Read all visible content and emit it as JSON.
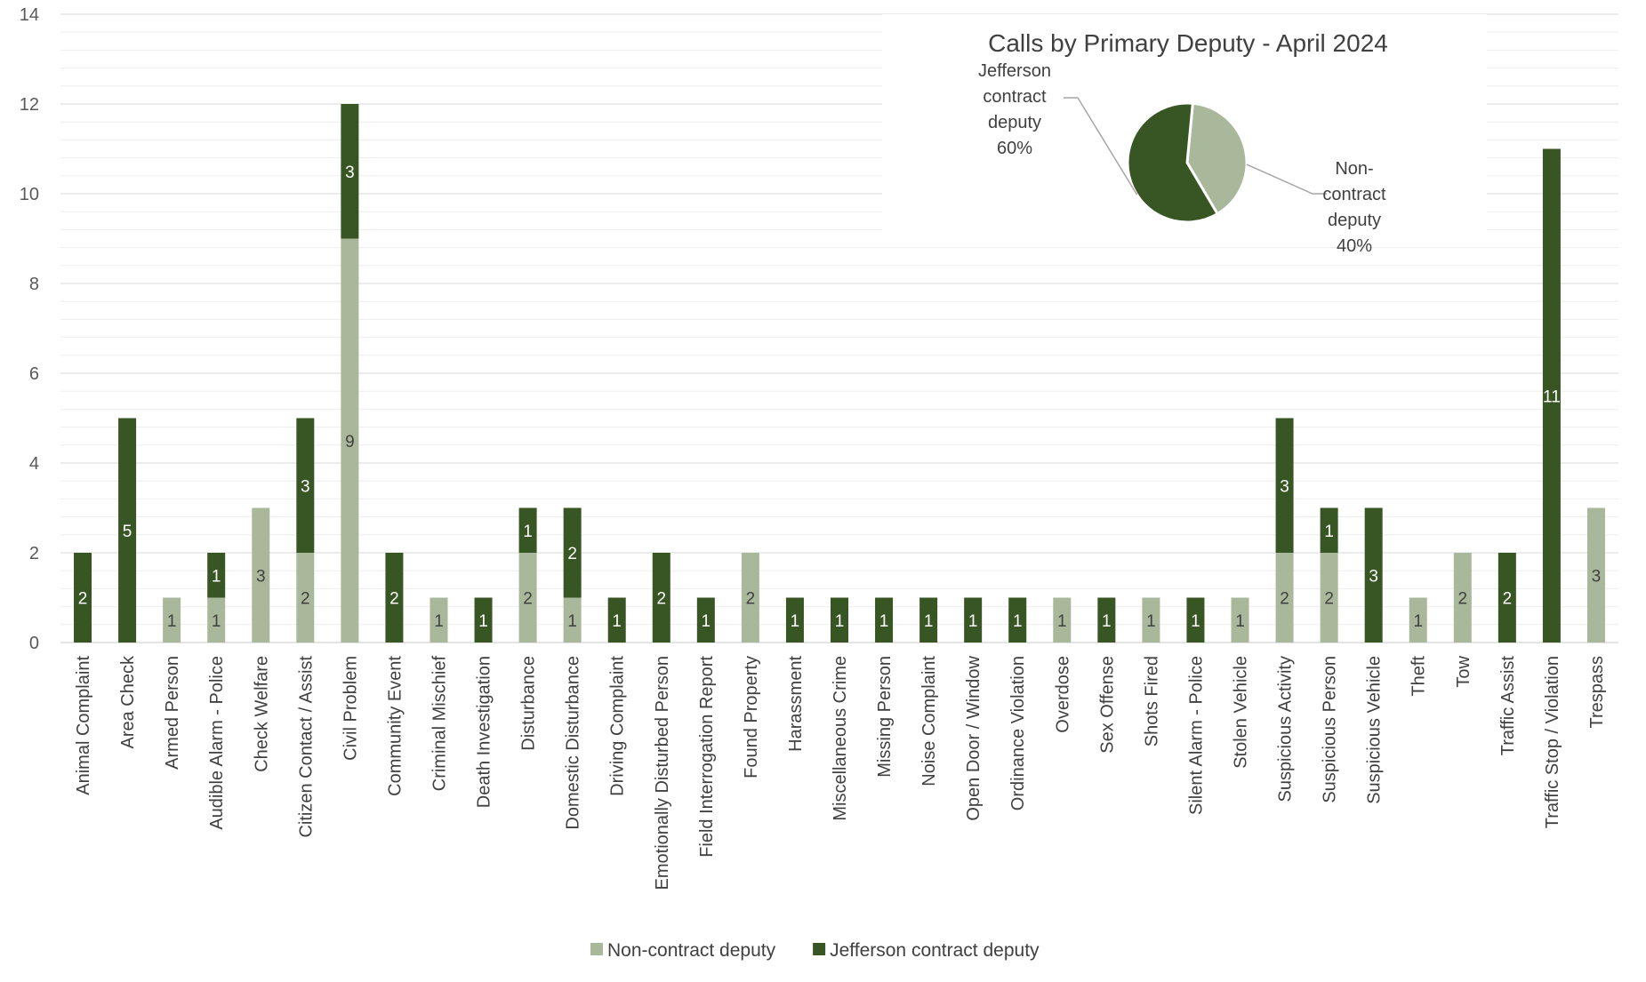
{
  "chart_data": [
    {
      "type": "bar",
      "stacked": true,
      "title": "",
      "xlabel": "",
      "ylabel": "",
      "ylim": [
        0,
        14
      ],
      "yticks": [
        0,
        2,
        4,
        6,
        8,
        10,
        12,
        14
      ],
      "grid": true,
      "legend_position": "bottom",
      "categories": [
        "Animal Complaint",
        "Area Check",
        "Armed Person",
        "Audible Alarm - Police",
        "Check Welfare",
        "Citizen Contact / Assist",
        "Civil Problem",
        "Community Event",
        "Criminal Mischief",
        "Death Investigation",
        "Disturbance",
        "Domestic Disturbance",
        "Driving Complaint",
        "Emotionally Disturbed Person",
        "Field Interrogation Report",
        "Found Property",
        "Harassment",
        "Miscellaneous Crime",
        "Missing Person",
        "Noise Complaint",
        "Open Door / Window",
        "Ordinance Violation",
        "Overdose",
        "Sex Offense",
        "Shots Fired",
        "Silent Alarm - Police",
        "Stolen Vehicle",
        "Suspicious Activity",
        "Suspicious Person",
        "Suspicious Vehicle",
        "Theft",
        "Tow",
        "Traffic Assist",
        "Traffic Stop / Violation",
        "Trespass"
      ],
      "series": [
        {
          "name": "Non-contract deputy",
          "color": "#a9b89b",
          "label_color": "#404040",
          "values": [
            0,
            0,
            1,
            1,
            3,
            2,
            9,
            0,
            1,
            0,
            2,
            1,
            0,
            0,
            0,
            2,
            0,
            0,
            0,
            0,
            0,
            0,
            1,
            0,
            1,
            0,
            1,
            2,
            2,
            0,
            1,
            2,
            0,
            0,
            3
          ]
        },
        {
          "name": "Jefferson contract deputy",
          "color": "#375623",
          "label_color": "#ffffff",
          "values": [
            2,
            5,
            0,
            1,
            0,
            3,
            3,
            2,
            0,
            1,
            1,
            2,
            1,
            2,
            1,
            0,
            1,
            1,
            1,
            1,
            1,
            1,
            0,
            1,
            0,
            1,
            0,
            3,
            1,
            3,
            0,
            0,
            2,
            11,
            0
          ]
        }
      ]
    },
    {
      "type": "pie",
      "title": "Calls by Primary Deputy - April 2024",
      "slices": [
        {
          "label": "Non-contract deputy",
          "value": 40,
          "display": "40%",
          "color": "#a9b89b"
        },
        {
          "label": "Jefferson contract deputy",
          "value": 60,
          "display": "60%",
          "color": "#375623"
        }
      ],
      "slice_labels": [
        [
          "Jefferson",
          "contract",
          "deputy",
          "60%"
        ],
        [
          "Non-",
          "contract",
          "deputy",
          "40%"
        ]
      ]
    }
  ]
}
